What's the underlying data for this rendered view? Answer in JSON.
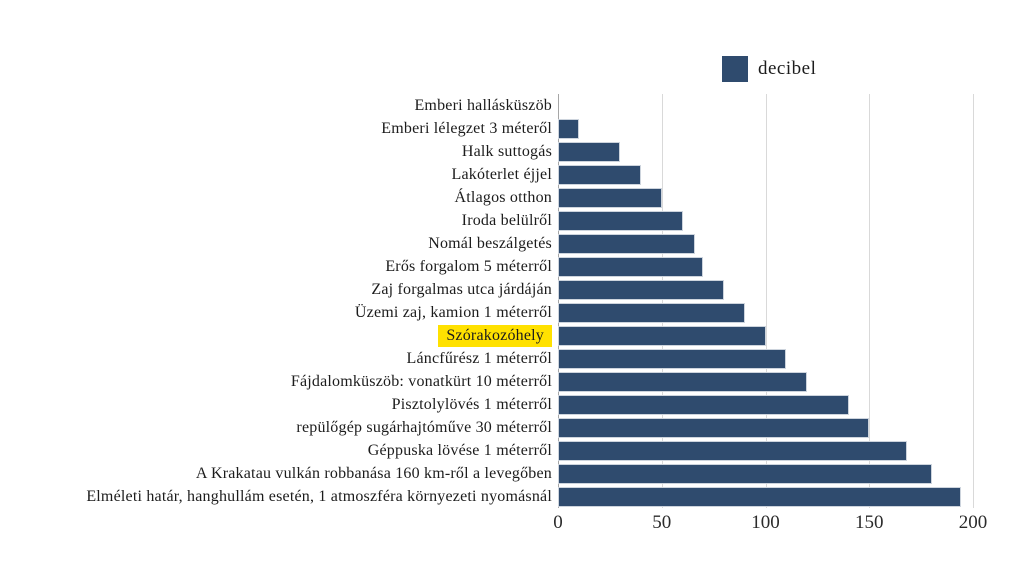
{
  "legend": {
    "label": "decibel"
  },
  "chart_data": {
    "type": "bar",
    "orientation": "horizontal",
    "title": "",
    "xlabel": "",
    "ylabel": "",
    "series_name": "decibel",
    "unit": "dB",
    "xlim": [
      0,
      200
    ],
    "x_ticks": [
      "0",
      "50",
      "100",
      "150",
      "200"
    ],
    "grid": true,
    "legend_position": "top-right",
    "bar_color": "#2f4b6e",
    "highlight_color": "#ffe100",
    "highlighted_category": "Szórakozóhely",
    "categories": [
      "Emberi hallásküszöb",
      "Emberi lélegzet 3 méteről",
      "Halk suttogás",
      "Lakóterlet éjjel",
      "Átlagos otthon",
      "Iroda belülről",
      "Nomál beszálgetés",
      "Erős forgalom 5 méterről",
      "Zaj forgalmas utca járdáján",
      "Üzemi zaj, kamion 1 méterről",
      "Szórakozóhely",
      "Láncfűrész 1 méterről",
      "Fájdalomküszöb: vonatkürt 10 méterről",
      "Pisztolylövés 1 méterről",
      "repülőgép sugárhajtóműve 30 méterről",
      "Géppuska lövése 1 méterről",
      "A Krakatau vulkán robbanása 160 km-ről a levegőben",
      "Elméleti határ, hanghullám esetén, 1 atmoszféra környezeti nyomásnál"
    ],
    "values": [
      0,
      10,
      30,
      40,
      50,
      60,
      66,
      70,
      80,
      90,
      100,
      110,
      120,
      140,
      150,
      168,
      180,
      194
    ]
  }
}
